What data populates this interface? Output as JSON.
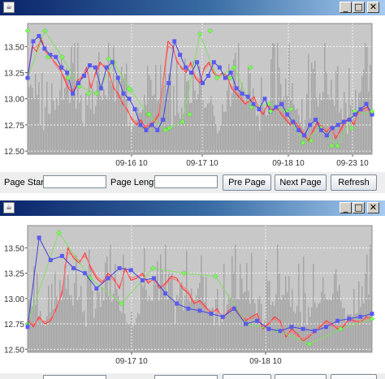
{
  "windows": [
    {
      "chart_data": {
        "type": "line",
        "title": "",
        "xlabel": "",
        "ylabel": "",
        "ylim": [
          12.47,
          13.72
        ],
        "y_ticks": [
          12.5,
          12.75,
          13.0,
          13.25,
          13.5
        ],
        "y_tick_labels": [
          "12.50",
          "12.75",
          "13.00",
          "13.25",
          "13.50"
        ],
        "x_tick_labels": [
          "09-16 10",
          "09-17 10",
          "09-18 10",
          "09-23 10"
        ],
        "grid": true,
        "series": [
          {
            "values": [
              13.2,
              13.5,
              13.45,
              13.58,
              13.45,
              13.4,
              13.35,
              13.3,
              13.2,
              13.1,
              13.05,
              13.18,
              13.2,
              13.3,
              13.1,
              13.25,
              13.35,
              13.3,
              13.25,
              13.1,
              13.05,
              12.95,
              12.9,
              12.8,
              12.75,
              12.8,
              12.72,
              12.75,
              12.78,
              12.85,
              13.2,
              13.55,
              13.5,
              13.35,
              13.3,
              13.25,
              13.35,
              13.2,
              13.15,
              13.3,
              13.35,
              13.25,
              13.2,
              13.25,
              13.22,
              13.1,
              13.05,
              13.0,
              12.95,
              12.98,
              13.02,
              12.9,
              12.85,
              12.95,
              12.88,
              12.92,
              12.85,
              12.8,
              12.75,
              12.78,
              12.72,
              12.65,
              12.6,
              12.7,
              12.78,
              12.72,
              12.68,
              12.74,
              12.62,
              12.7,
              12.78,
              12.82,
              12.75,
              12.88,
              12.9,
              12.92,
              12.85
            ]
          },
          {
            "values": [
              13.22,
              13.48,
              13.5,
              13.55,
              13.47,
              13.42,
              13.33,
              13.28,
              13.22,
              13.12,
              13.08,
              13.16,
              13.22,
              13.28,
              13.12,
              13.23,
              13.33,
              13.32,
              13.23,
              13.12,
              13.02,
              12.97,
              12.88,
              12.82,
              12.77,
              12.78,
              12.74,
              12.76,
              12.8,
              12.87,
              13.18,
              13.5,
              13.48,
              13.37,
              13.28,
              13.27,
              13.33,
              13.22,
              13.17,
              13.28,
              13.33,
              13.27,
              13.22,
              13.23,
              13.2,
              13.12,
              13.07,
              13.02,
              12.97,
              12.96,
              13.0,
              12.92,
              12.87,
              12.93,
              12.9,
              12.9,
              12.87,
              12.82,
              12.77,
              12.76,
              12.74,
              12.67,
              12.62,
              12.68,
              12.76,
              12.74,
              12.7,
              12.72,
              12.64,
              12.68,
              12.76,
              12.8,
              12.77,
              12.86,
              12.88,
              12.9,
              12.83
            ]
          },
          {
            "values": [
              13.2,
              13.65,
              13.4,
              13.12,
              13.05,
              13.35,
              13.08,
              12.85,
              12.7,
              12.78,
              13.62,
              13.2,
              13.3,
              12.92,
              12.95,
              12.88,
              12.58,
              12.72,
              12.55,
              12.88,
              12.85
            ]
          },
          {
            "values": [
              13.2,
              13.55,
              13.6,
              13.48,
              13.42,
              13.4,
              13.3,
              13.25,
              13.05,
              13.15,
              13.22,
              13.32,
              13.3,
              13.1,
              13.3,
              13.35,
              13.2,
              13.05,
              13.0,
              12.9,
              12.75,
              12.7,
              12.75,
              12.7,
              12.8,
              13.15,
              13.55,
              13.42,
              13.3,
              13.25,
              13.35,
              13.15,
              13.22,
              13.35,
              13.3,
              13.2,
              13.25,
              13.1,
              13.05,
              13.02,
              12.95,
              12.9,
              13.0,
              12.88,
              12.92,
              12.95,
              12.85,
              12.78,
              12.7,
              12.65,
              12.75,
              12.8,
              12.7,
              12.65,
              12.72,
              12.75,
              12.78,
              12.8,
              12.85,
              12.9,
              12.95,
              12.85
            ]
          },
          {
            "values": [
              13.65,
              13.4,
              13.2,
              13.05,
              13.38,
              13.1,
              12.85,
              12.72,
              12.85,
              13.65,
              13.2,
              13.3,
              12.88,
              12.9,
              12.6,
              12.55,
              12.72,
              12.88
            ]
          }
        ]
      },
      "controls": {
        "page_start_label": "Page Start",
        "page_start_value": "",
        "page_length_label": "Page Length",
        "page_length_value": "",
        "pre_page_label": "Pre Page",
        "next_page_label": "Next Page",
        "refresh_label": "Refresh"
      }
    },
    {
      "chart_data": {
        "type": "line",
        "title": "",
        "xlabel": "",
        "ylabel": "",
        "ylim": [
          12.47,
          13.72
        ],
        "y_ticks": [
          12.5,
          12.75,
          13.0,
          13.25,
          13.5
        ],
        "y_tick_labels": [
          "12.50",
          "12.75",
          "13.00",
          "13.25",
          "13.50"
        ],
        "x_tick_labels": [
          "09-17 10",
          "09-18 10"
        ],
        "grid": true,
        "series": [
          {
            "values": [
              12.8,
              12.72,
              12.82,
              12.75,
              12.78,
              12.9,
              13.05,
              13.5,
              13.4,
              13.35,
              13.45,
              13.3,
              13.2,
              13.15,
              13.25,
              13.2,
              13.1,
              13.3,
              13.18,
              13.2,
              13.25,
              13.15,
              13.2,
              13.1,
              13.15,
              13.22,
              13.2,
              13.1,
              13.05,
              12.95,
              12.98,
              12.92,
              12.85,
              12.9,
              12.8,
              12.88,
              12.92,
              12.85,
              12.78,
              12.82,
              12.85,
              12.7,
              12.75,
              12.82,
              12.78,
              12.62,
              12.7,
              12.65,
              12.58,
              12.62,
              12.68,
              12.72,
              12.78,
              12.75,
              12.7,
              12.72,
              12.8,
              12.78,
              12.76,
              12.82,
              12.8
            ]
          },
          {
            "values": [
              12.78,
              12.74,
              12.8,
              12.77,
              12.8,
              12.88,
              13.08,
              13.45,
              13.42,
              13.37,
              13.42,
              13.32,
              13.22,
              13.17,
              13.23,
              13.18,
              13.12,
              13.28,
              13.2,
              13.22,
              13.23,
              13.17,
              13.18,
              13.12,
              13.13,
              13.2,
              13.18,
              13.12,
              13.07,
              12.97,
              12.96,
              12.9,
              12.87,
              12.88,
              12.82,
              12.86,
              12.9,
              12.83,
              12.8,
              12.8,
              12.83,
              12.72,
              12.76,
              12.8,
              12.76,
              12.64,
              12.68,
              12.63,
              12.6,
              12.64,
              12.66,
              12.74,
              12.76,
              12.73,
              12.72,
              12.74,
              12.78,
              12.77,
              12.78,
              12.8,
              12.82
            ]
          },
          {
            "values": [
              12.75,
              13.65,
              13.2,
              12.95,
              13.3,
              13.25,
              13.22,
              12.75,
              12.68,
              12.55,
              12.7,
              12.8
            ]
          },
          {
            "values": [
              12.72,
              13.6,
              13.38,
              13.42,
              13.3,
              13.25,
              13.1,
              13.2,
              13.3,
              13.28,
              13.18,
              13.2,
              13.05,
              12.95,
              12.9,
              12.88,
              12.85,
              12.82,
              12.9,
              12.75,
              12.78,
              12.7,
              12.68,
              12.72,
              12.7,
              12.68,
              12.72,
              12.78,
              12.8,
              12.82,
              12.85
            ]
          }
        ]
      },
      "controls": {
        "page_start_label": "",
        "page_start_value": "",
        "page_length_label": "",
        "page_length_value": "",
        "pre_page_label": "",
        "next_page_label": "",
        "refresh_label": ""
      }
    }
  ],
  "window_buttons": {
    "minimize_glyph": "_",
    "maximize_glyph": "□",
    "close_glyph": "✕"
  },
  "colors": {
    "plot_background": "#c8c8c8",
    "volume_fill": "#9a9a9a",
    "grid": "#ffffff",
    "price_line": "#ff3030",
    "price_line_2": "#ff7070",
    "marker_line": "#4040e0",
    "marker_fill": "#5a5af0",
    "signal_line": "#80e060",
    "signal_fill": "#7fff5a",
    "titlebar_start": "#0a246a",
    "titlebar_end": "#a6caf0"
  }
}
